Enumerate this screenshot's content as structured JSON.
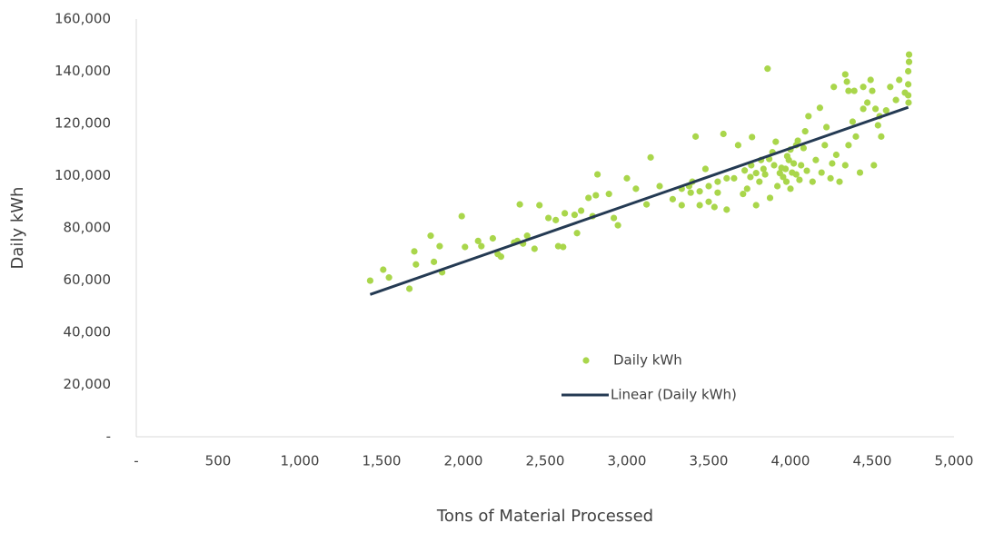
{
  "chart_data": {
    "type": "scatter",
    "x_label": "Tons of Material Processed",
    "y_label": "Daily kWh",
    "xlim": [
      0,
      5000
    ],
    "ylim": [
      0,
      160000
    ],
    "xticks": [
      {
        "value": 0,
        "label": "-"
      },
      500,
      {
        "value": 1000,
        "label": "1,000"
      },
      {
        "value": 1500,
        "label": "1,500"
      },
      {
        "value": 2000,
        "label": "2,000"
      },
      {
        "value": 2500,
        "label": "2,500"
      },
      {
        "value": 3000,
        "label": "3,000"
      },
      {
        "value": 3500,
        "label": "3,500"
      },
      {
        "value": 4000,
        "label": "4,000"
      },
      {
        "value": 4500,
        "label": "4,500"
      },
      {
        "value": 5000,
        "label": "5,000"
      }
    ],
    "yticks": [
      {
        "value": 0,
        "label": "-"
      },
      {
        "value": 20000,
        "label": "20,000"
      },
      {
        "value": 40000,
        "label": "40,000"
      },
      {
        "value": 60000,
        "label": "60,000"
      },
      {
        "value": 80000,
        "label": "80,000"
      },
      {
        "value": 100000,
        "label": "100,000"
      },
      {
        "value": 120000,
        "label": "120,000"
      },
      {
        "value": 140000,
        "label": "140,000"
      },
      {
        "value": 160000,
        "label": "160,000"
      }
    ],
    "grid": false,
    "legend": "inside-center",
    "series": [
      {
        "name": "Daily kWh",
        "mode": "markers",
        "color": "#a9d64b",
        "x": [
          1430,
          1510,
          1545,
          1700,
          1710,
          1670,
          1800,
          1820,
          1855,
          1870,
          1990,
          2010,
          2090,
          2110,
          2180,
          2210,
          2230,
          2310,
          2330,
          2345,
          2365,
          2390,
          2435,
          2465,
          2520,
          2565,
          2580,
          2610,
          2620,
          2680,
          2695,
          2720,
          2765,
          2790,
          2810,
          2820,
          2890,
          2920,
          2945,
          3000,
          3055,
          3120,
          3145,
          3200,
          3280,
          3335,
          3380,
          3400,
          3420,
          3445,
          3480,
          3500,
          3535,
          3555,
          3590,
          3610,
          3655,
          3680,
          3710,
          3735,
          3760,
          3765,
          3790,
          3810,
          3820,
          3845,
          3860,
          3875,
          3890,
          3910,
          3920,
          3945,
          3955,
          3980,
          4000,
          4020,
          4045,
          4055,
          4080,
          4090,
          4100,
          4110,
          4135,
          4155,
          4180,
          4190,
          4210,
          4220,
          4245,
          4255,
          4280,
          4300,
          4335,
          4355,
          4380,
          4400,
          4425,
          4445,
          4470,
          4500,
          4510,
          4535,
          4555,
          4585,
          4610,
          4645,
          4665,
          4700,
          4720,
          4720,
          4725,
          4725,
          4720,
          4722,
          4335,
          4390,
          4490,
          4345,
          4355,
          4265,
          4520,
          4445,
          4545,
          3720,
          3755,
          3790,
          3835,
          3870,
          3900,
          3935,
          3970,
          3990,
          4010,
          4035,
          4065,
          4000,
          4035,
          3975,
          3610,
          3555,
          3500,
          3445,
          3390,
          3335
        ],
        "values": [
          59800,
          64000,
          61000,
          71000,
          66000,
          56700,
          77000,
          67000,
          73000,
          63000,
          84500,
          72700,
          75000,
          73000,
          76000,
          70000,
          69000,
          74400,
          75000,
          89000,
          74000,
          77000,
          72000,
          88700,
          83800,
          83000,
          73000,
          72700,
          85600,
          85000,
          78000,
          86600,
          91500,
          84500,
          92500,
          100500,
          93000,
          83800,
          81000,
          99000,
          95000,
          89000,
          107000,
          96000,
          91000,
          88700,
          96000,
          97700,
          115000,
          88700,
          102600,
          90000,
          88000,
          97700,
          116000,
          87000,
          99000,
          111700,
          93000,
          95000,
          104000,
          114800,
          88700,
          97700,
          106000,
          100500,
          141000,
          91500,
          109000,
          113000,
          96000,
          103000,
          99500,
          107500,
          95000,
          104700,
          113400,
          98400,
          110600,
          117000,
          101900,
          122800,
          97700,
          106000,
          126000,
          101200,
          111700,
          118600,
          99000,
          104700,
          108000,
          97700,
          104000,
          111700,
          120700,
          115000,
          101200,
          125600,
          128000,
          132500,
          104000,
          119300,
          115000,
          125000,
          134000,
          129000,
          136700,
          131800,
          135000,
          140000,
          143600,
          146400,
          130800,
          128000,
          138800,
          132500,
          136700,
          136000,
          132500,
          134000,
          125600,
          134000,
          122800,
          102000,
          99500,
          101000,
          102600,
          106400,
          104000,
          101000,
          102600,
          106000,
          101200,
          100500,
          104000,
          110000,
          111700,
          97700,
          99000,
          93500,
          96000,
          94000,
          93500,
          95000
        ]
      },
      {
        "name": "Linear (Daily kWh)",
        "mode": "line",
        "color": "#243a53",
        "x": [
          1430,
          4720
        ],
        "values": [
          54500,
          126200
        ]
      }
    ]
  }
}
